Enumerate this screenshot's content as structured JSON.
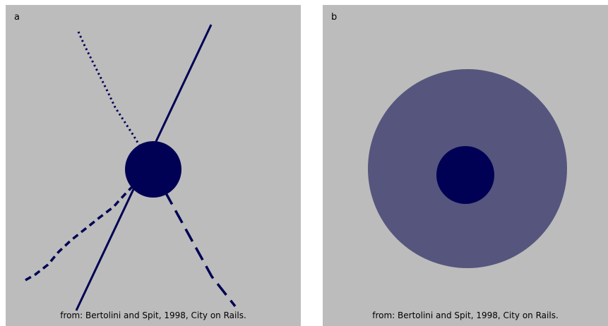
{
  "panels": [
    {
      "label": "a",
      "caption": "from: Bertolini and Spit, 1998, City on Rails."
    },
    {
      "label": "b",
      "caption": "from: Bertolini and Spit, 1998, City on Rails."
    }
  ],
  "colors": {
    "background": "#bcbcbc",
    "node": "#000055",
    "catchment_area": "#56557d",
    "line": "#000055"
  }
}
